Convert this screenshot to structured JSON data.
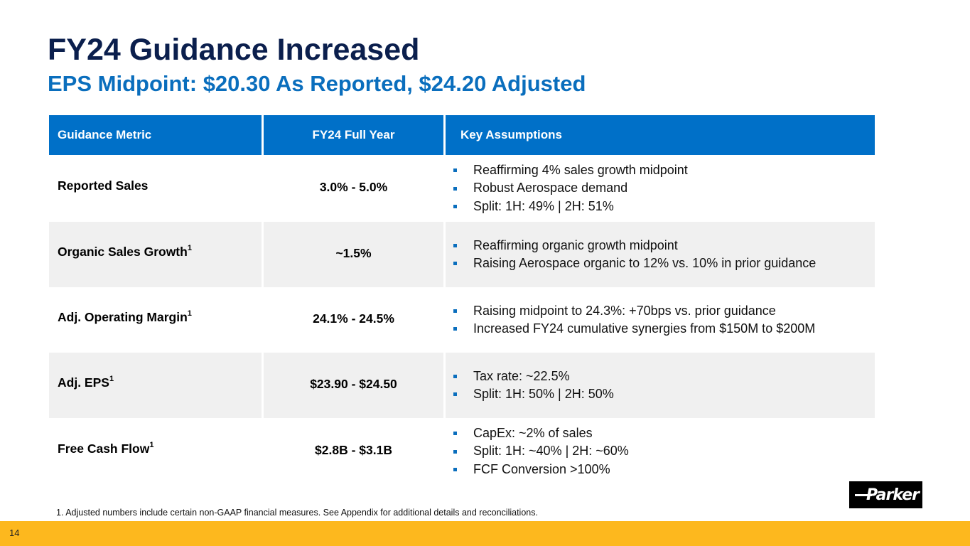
{
  "slide": {
    "title": "FY24 Guidance Increased",
    "subtitle": "EPS Midpoint: $20.30 As Reported, $24.20 Adjusted",
    "page_number": "14",
    "footnote": "1. Adjusted numbers include certain non-GAAP financial measures. See Appendix for additional details and reconciliations.",
    "logo_text": "Parker",
    "colors": {
      "title": "#0b1f4d",
      "subtitle": "#0a6ebd",
      "header_bg": "#0070c8",
      "row_alt_bg": "#f0f0f0",
      "footer_bar": "#fdb81e"
    }
  },
  "table": {
    "headers": [
      "Guidance Metric",
      "FY24 Full Year",
      "Key Assumptions"
    ],
    "rows": [
      {
        "metric": "Reported Sales",
        "footnote_ref": "",
        "value": "3.0% - 5.0%",
        "assumptions": [
          "Reaffirming 4% sales growth midpoint",
          "Robust Aerospace demand",
          "Split: 1H: 49% | 2H: 51%"
        ]
      },
      {
        "metric": "Organic Sales Growth",
        "footnote_ref": "1",
        "value": "~1.5%",
        "assumptions": [
          "Reaffirming organic growth midpoint",
          "Raising Aerospace organic to 12% vs. 10% in prior guidance"
        ]
      },
      {
        "metric": "Adj. Operating Margin",
        "footnote_ref": "1",
        "value": "24.1% - 24.5%",
        "assumptions": [
          "Raising midpoint to 24.3%: +70bps vs. prior guidance",
          "Increased FY24 cumulative synergies from $150M to $200M"
        ]
      },
      {
        "metric": "Adj. EPS",
        "footnote_ref": "1",
        "value": "$23.90 - $24.50",
        "assumptions": [
          "Tax rate: ~22.5%",
          "Split: 1H: 50% | 2H: 50%"
        ]
      },
      {
        "metric": "Free Cash Flow",
        "footnote_ref": "1",
        "value": "$2.8B - $3.1B",
        "assumptions": [
          "CapEx: ~2% of sales",
          "Split: 1H: ~40% | 2H: ~60%",
          "FCF Conversion >100%"
        ]
      }
    ]
  }
}
